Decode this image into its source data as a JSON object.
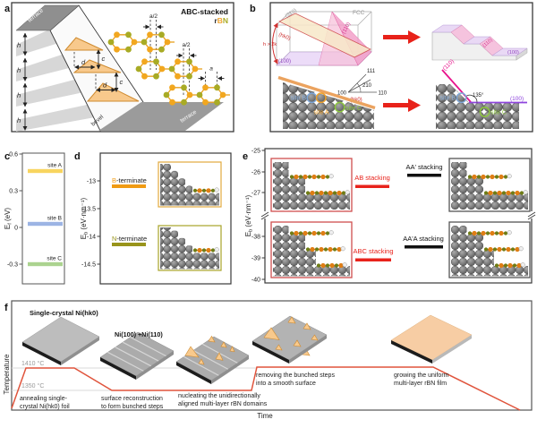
{
  "fig": {
    "panel_a": {
      "label": "a",
      "stack_title": "ABC-stacked",
      "rbn": {
        "r": "r",
        "B": "B",
        "N": "N"
      },
      "terrace_top": "terrace",
      "terrace_bottom": "terrace",
      "bevel": "bevel",
      "h": "h",
      "c": "c",
      "d": "d",
      "a_half": "a/2",
      "a_lattice": "a"
    },
    "panel_b": {
      "label": "b",
      "fcc": "FCC",
      "plane_210": "(210)",
      "plane_110": "(110)",
      "plane_100": "(100)",
      "plane_hk0": "(hk0)",
      "h_gt_2k": "h > 2k",
      "fan": {
        "l111": "111",
        "l210": "210",
        "l110": "110",
        "l100": "100",
        "lhk0": "(hk0)"
      },
      "site_a": "site A",
      "site_b": "site B",
      "site_c": "site C",
      "stair_110": "(110)",
      "stair_100": "(100)",
      "right_110": "(110)",
      "right_100": "(100)",
      "angle_135": "135°",
      "right_site_b": "site B",
      "right_site_c": "site C"
    },
    "panel_c": {
      "label": "c",
      "ylabel_E": "E",
      "ylabel_sub": "f",
      "ylabel_unit": " (eV)",
      "ticks": [
        "0.6",
        "0.3",
        "0",
        "-0.3"
      ],
      "bars": [
        {
          "label": "site A",
          "value": 0.46,
          "color": "#f8d55f"
        },
        {
          "label": "site B",
          "value": 0.03,
          "color": "#9cb4e4"
        },
        {
          "label": "site C",
          "value": -0.3,
          "color": "#abd38f"
        }
      ]
    },
    "panel_d": {
      "label": "d",
      "ylabel_E": "E",
      "ylabel_sub": "b",
      "ylabel_unit": " (eV·nm⁻¹)",
      "ticks": [
        "-13",
        "-13.5",
        "-14",
        "-14.5"
      ],
      "entries": [
        {
          "prefix": "B",
          "rest": "-terminate",
          "value": -13.1,
          "color": "#f09b13"
        },
        {
          "prefix": "N",
          "rest": "-terminate",
          "value": -14.15,
          "color": "#99941b"
        }
      ]
    },
    "panel_e": {
      "label": "e",
      "ylabel_E": "E",
      "ylabel_sub": "b",
      "ylabel_unit": " (eV·nm⁻¹)",
      "ticks_top": [
        "-25",
        "-26",
        "-27"
      ],
      "ticks_bottom": [
        "-38",
        "-39",
        "-40"
      ],
      "entries": [
        {
          "label": "AB stacking",
          "value": -26.7,
          "color": "#e8231c"
        },
        {
          "label": "AA' stacking",
          "value": -26.2,
          "color": "#111111"
        },
        {
          "label": "ABC stacking",
          "value": -39.1,
          "color": "#e8231c"
        },
        {
          "label": "AA'A stacking",
          "value": -38.4,
          "color": "#111111"
        }
      ]
    },
    "panel_f": {
      "label": "f",
      "xlabel": "Time",
      "ylabel": "Temperature",
      "t_high": "1410 °C",
      "t_low": "1350 °C",
      "slab1_title": "Single-crystal Ni(hk0)",
      "slab2_title": "Ni(100) +Ni(110)",
      "steps": [
        {
          "lines": [
            "annealing single-",
            "crystal Ni(hk0) foil"
          ]
        },
        {
          "lines": [
            "surface reconstruction",
            "to form bunched steps"
          ]
        },
        {
          "lines": [
            "nucleating the unidirectionally",
            "aligned multi-layer rBN domains"
          ]
        },
        {
          "lines": [
            "removing the bunched steps",
            "into a smooth surface"
          ]
        },
        {
          "lines": [
            "growing the uniform",
            "multi-layer rBN film"
          ]
        }
      ]
    }
  }
}
